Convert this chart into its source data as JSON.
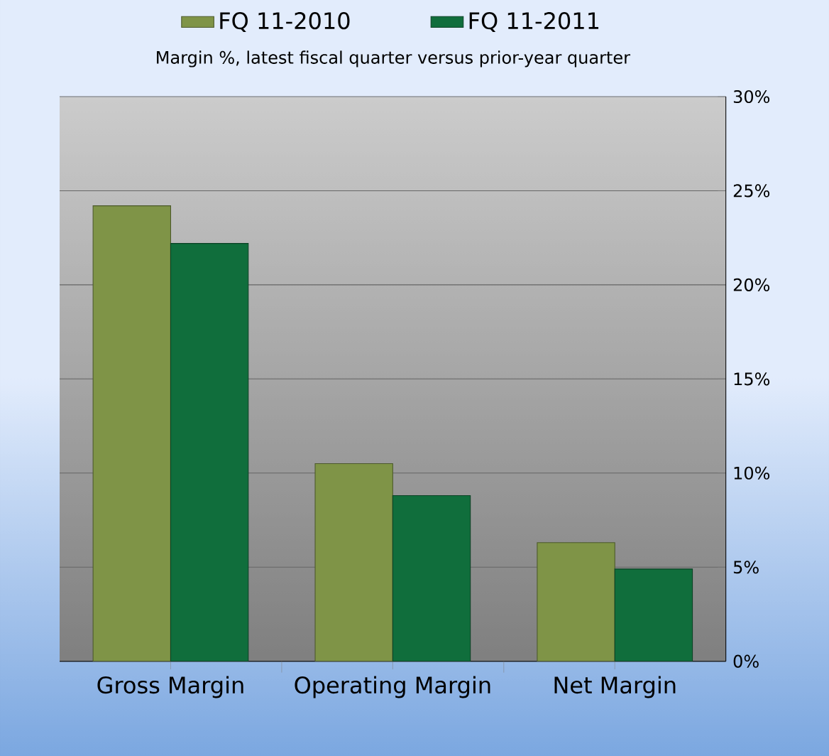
{
  "chart_data": {
    "type": "bar",
    "title": "Margin %,  latest fiscal quarter versus prior-year quarter",
    "categories": [
      "Gross Margin",
      "Operating Margin",
      "Net Margin"
    ],
    "series": [
      {
        "name": "FQ 11-2010",
        "color": "#7f9447",
        "values": [
          24.2,
          10.5,
          6.3
        ]
      },
      {
        "name": "FQ 11-2011",
        "color": "#106e3c",
        "values": [
          22.2,
          8.8,
          4.9
        ]
      }
    ],
    "ylim": [
      0,
      30
    ],
    "yticks": [
      {
        "value": 0,
        "label": "0%"
      },
      {
        "value": 5,
        "label": "5%"
      },
      {
        "value": 10,
        "label": "10%"
      },
      {
        "value": 15,
        "label": "15%"
      },
      {
        "value": 20,
        "label": "20%"
      },
      {
        "value": 25,
        "label": "25%"
      },
      {
        "value": 30,
        "label": "30%"
      }
    ],
    "grid": "y",
    "legend": "top"
  }
}
